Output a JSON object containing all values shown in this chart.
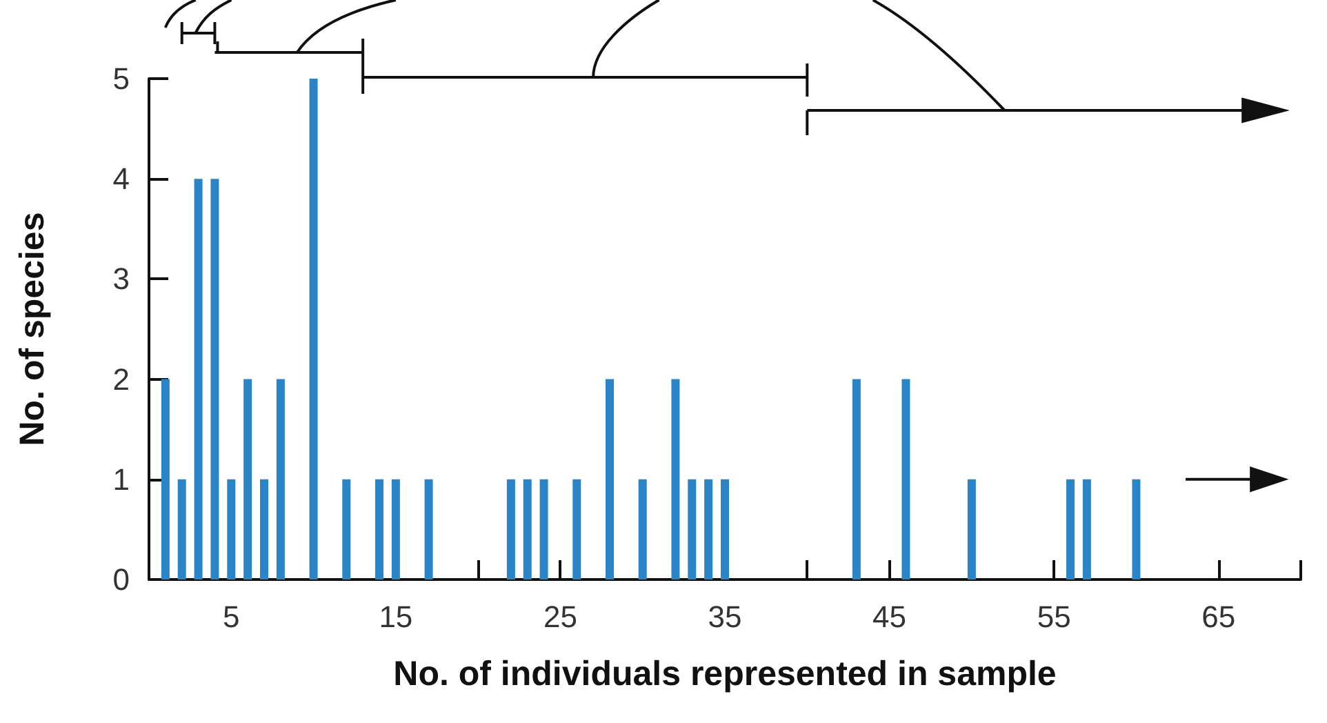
{
  "chart_data": {
    "type": "bar",
    "xlabel": "No. of individuals represented in sample",
    "ylabel": "No. of species",
    "x": [
      1,
      2,
      3,
      4,
      5,
      6,
      7,
      8,
      10,
      12,
      14,
      15,
      17,
      22,
      23,
      24,
      26,
      28,
      30,
      32,
      33,
      34,
      35,
      43,
      46,
      50,
      56,
      57,
      60
    ],
    "values": [
      2,
      1,
      4,
      4,
      1,
      2,
      1,
      2,
      5,
      1,
      1,
      1,
      1,
      1,
      1,
      1,
      1,
      2,
      1,
      2,
      1,
      1,
      1,
      2,
      2,
      1,
      1,
      1,
      1
    ],
    "color": "#2a85c8",
    "xlim": [
      0,
      70
    ],
    "xticks": [
      {
        "value": 5,
        "label": "5"
      },
      {
        "value": 10,
        "label": null
      },
      {
        "value": 15,
        "label": "15"
      },
      {
        "value": 20,
        "label": null
      },
      {
        "value": 25,
        "label": "25"
      },
      {
        "value": 30,
        "label": null
      },
      {
        "value": 35,
        "label": "35"
      },
      {
        "value": 40,
        "label": null
      },
      {
        "value": 45,
        "label": "45"
      },
      {
        "value": 50,
        "label": null
      },
      {
        "value": 55,
        "label": "55"
      },
      {
        "value": 60,
        "label": null
      },
      {
        "value": 65,
        "label": "65"
      },
      {
        "value": 70,
        "label": null
      }
    ],
    "ylim": [
      0,
      5
    ],
    "yticks": [
      0,
      1,
      2,
      3,
      4,
      5
    ],
    "grid": false
  }
}
